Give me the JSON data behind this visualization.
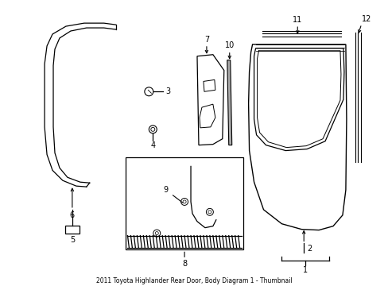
{
  "bg_color": "#ffffff",
  "line_color": "#000000",
  "figsize": [
    4.89,
    3.6
  ],
  "dpi": 100,
  "title": "2011 Toyota Highlander Rear Door, Body Diagram 1 - Thumbnail"
}
